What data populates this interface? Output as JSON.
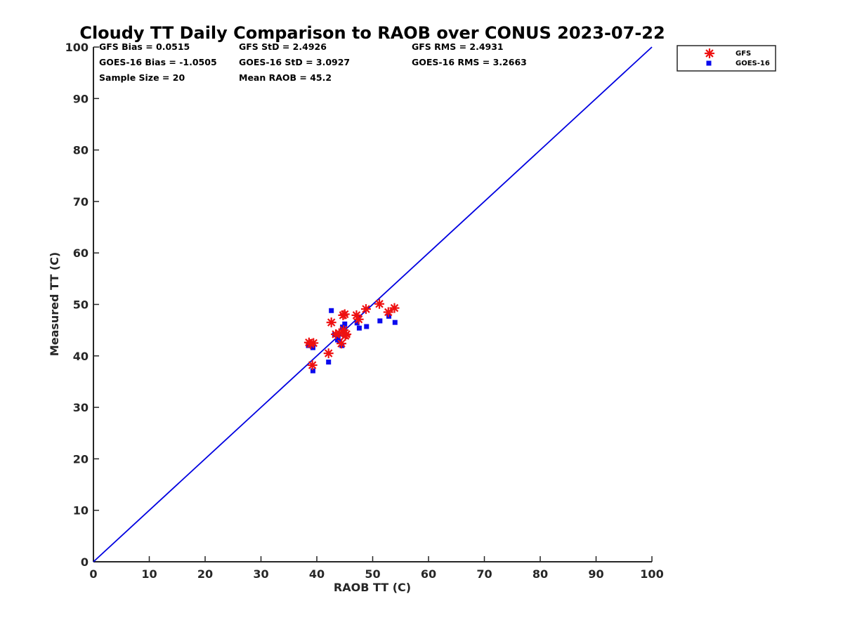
{
  "chart_data": {
    "type": "scatter",
    "title": "Cloudy TT Daily Comparison to RAOB over CONUS 2023-07-22",
    "xlabel": "RAOB TT (C)",
    "ylabel": "Measured TT (C)",
    "xlim": [
      0,
      100
    ],
    "ylim": [
      0,
      100
    ],
    "xticks": [
      "0",
      "10",
      "20",
      "30",
      "40",
      "50",
      "60",
      "70",
      "80",
      "90",
      "100"
    ],
    "yticks": [
      "0",
      "10",
      "20",
      "30",
      "40",
      "50",
      "60",
      "70",
      "80",
      "90",
      "100"
    ],
    "grid": false,
    "legend_position": "outside top-right",
    "stats": [
      "GFS Bias = 0.0515",
      "GFS StD = 2.4926",
      "GFS RMS = 2.4931",
      "GOES-16 Bias = -1.0505",
      "GOES-16 StD = 3.0927",
      "GOES-16 RMS = 3.2663",
      "Sample Size = 20",
      "Mean RAOB = 45.2"
    ],
    "reference_line": {
      "x": [
        0,
        100
      ],
      "y": [
        0,
        100
      ],
      "color": "#0000e0"
    },
    "series": [
      {
        "name": "GFS",
        "marker": "asterisk",
        "color": "#ee1111",
        "x": [
          38.6,
          39.4,
          39.2,
          42.1,
          42.6,
          43.4,
          44.0,
          44.4,
          44.7,
          45.0,
          45.1,
          47.1,
          47.5,
          48.8,
          51.2,
          52.8,
          53.9,
          38.9,
          44.8,
          45.3
        ],
        "y": [
          42.6,
          42.5,
          38.2,
          40.5,
          46.5,
          44.2,
          44.4,
          42.4,
          47.9,
          48.1,
          43.9,
          47.9,
          47.1,
          49.1,
          50.1,
          48.5,
          49.3,
          42.3,
          45.0,
          44.2
        ]
      },
      {
        "name": "GOES-16",
        "marker": "square",
        "color": "#0a0aee",
        "x": [
          38.5,
          39.3,
          39.3,
          42.1,
          42.6,
          43.2,
          43.7,
          44.1,
          44.5,
          44.8,
          45.0,
          45.0,
          47.2,
          47.6,
          48.9,
          51.3,
          52.9,
          54.0,
          43.8,
          44.6
        ],
        "y": [
          42.0,
          41.6,
          37.1,
          38.8,
          48.8,
          44.1,
          43.1,
          42.8,
          42.0,
          45.2,
          46.2,
          44.0,
          46.4,
          45.4,
          45.7,
          46.8,
          47.7,
          46.5,
          43.8,
          45.6
        ]
      }
    ]
  }
}
